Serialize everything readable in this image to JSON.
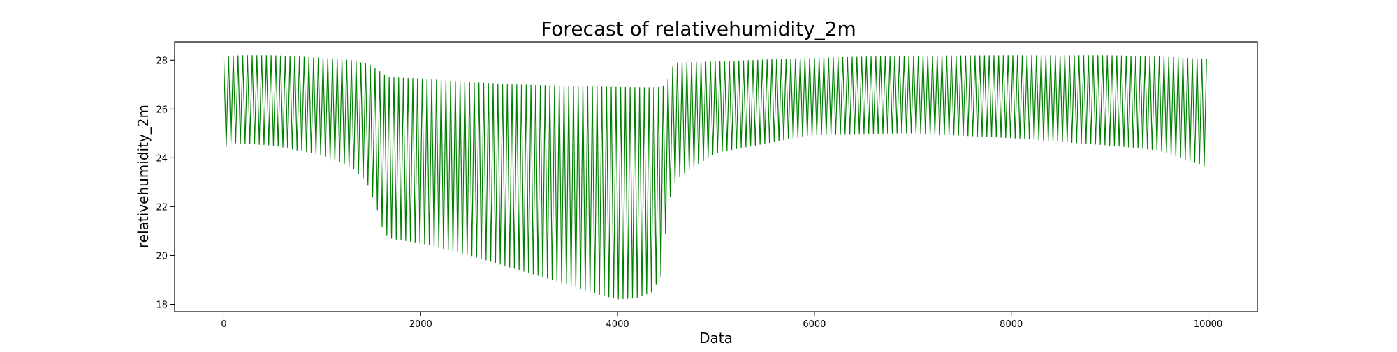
{
  "chart_data": {
    "type": "line",
    "title": "Forecast of relativehumidity_2m",
    "xlabel": "Data",
    "ylabel": "relativehumidity_2m",
    "xlim": [
      -500,
      10500
    ],
    "ylim": [
      17.7,
      28.75
    ],
    "xticks": [
      0,
      2000,
      4000,
      6000,
      8000,
      10000
    ],
    "yticks": [
      18,
      20,
      22,
      24,
      26,
      28
    ],
    "grid": false,
    "legend": "none",
    "series_color": "#008000",
    "oscillation_period": 48,
    "series": [
      {
        "upper_envelope": {
          "x": [
            0,
            50,
            200,
            500,
            1000,
            1300,
            1500,
            1600,
            1650,
            1700,
            1800,
            2000,
            2500,
            3000,
            3500,
            4000,
            4300,
            4450,
            4500,
            4550,
            4600,
            5000,
            6000,
            7000,
            8000,
            9000,
            9500,
            10000
          ],
          "y": [
            28.0,
            28.18,
            28.2,
            28.2,
            28.1,
            28.0,
            27.8,
            27.5,
            27.35,
            27.3,
            27.28,
            27.25,
            27.1,
            27.0,
            26.95,
            26.9,
            26.88,
            26.9,
            27.1,
            27.7,
            27.9,
            27.95,
            28.1,
            28.18,
            28.2,
            28.2,
            28.15,
            28.05
          ]
        },
        "lower_envelope": {
          "x": [
            0,
            30,
            100,
            500,
            1000,
            1300,
            1450,
            1550,
            1620,
            1680,
            1750,
            2000,
            2500,
            3000,
            3500,
            3800,
            4000,
            4200,
            4350,
            4450,
            4500,
            4550,
            4650,
            5000,
            6000,
            7000,
            8000,
            9000,
            9500,
            10000
          ],
          "y": [
            23.9,
            24.6,
            24.6,
            24.5,
            24.1,
            23.6,
            23.0,
            22.0,
            21.0,
            20.7,
            20.65,
            20.5,
            20.0,
            19.4,
            18.8,
            18.4,
            18.2,
            18.25,
            18.5,
            19.2,
            21.4,
            22.8,
            23.3,
            24.2,
            24.95,
            25.0,
            24.8,
            24.5,
            24.3,
            23.6
          ]
        }
      }
    ]
  }
}
